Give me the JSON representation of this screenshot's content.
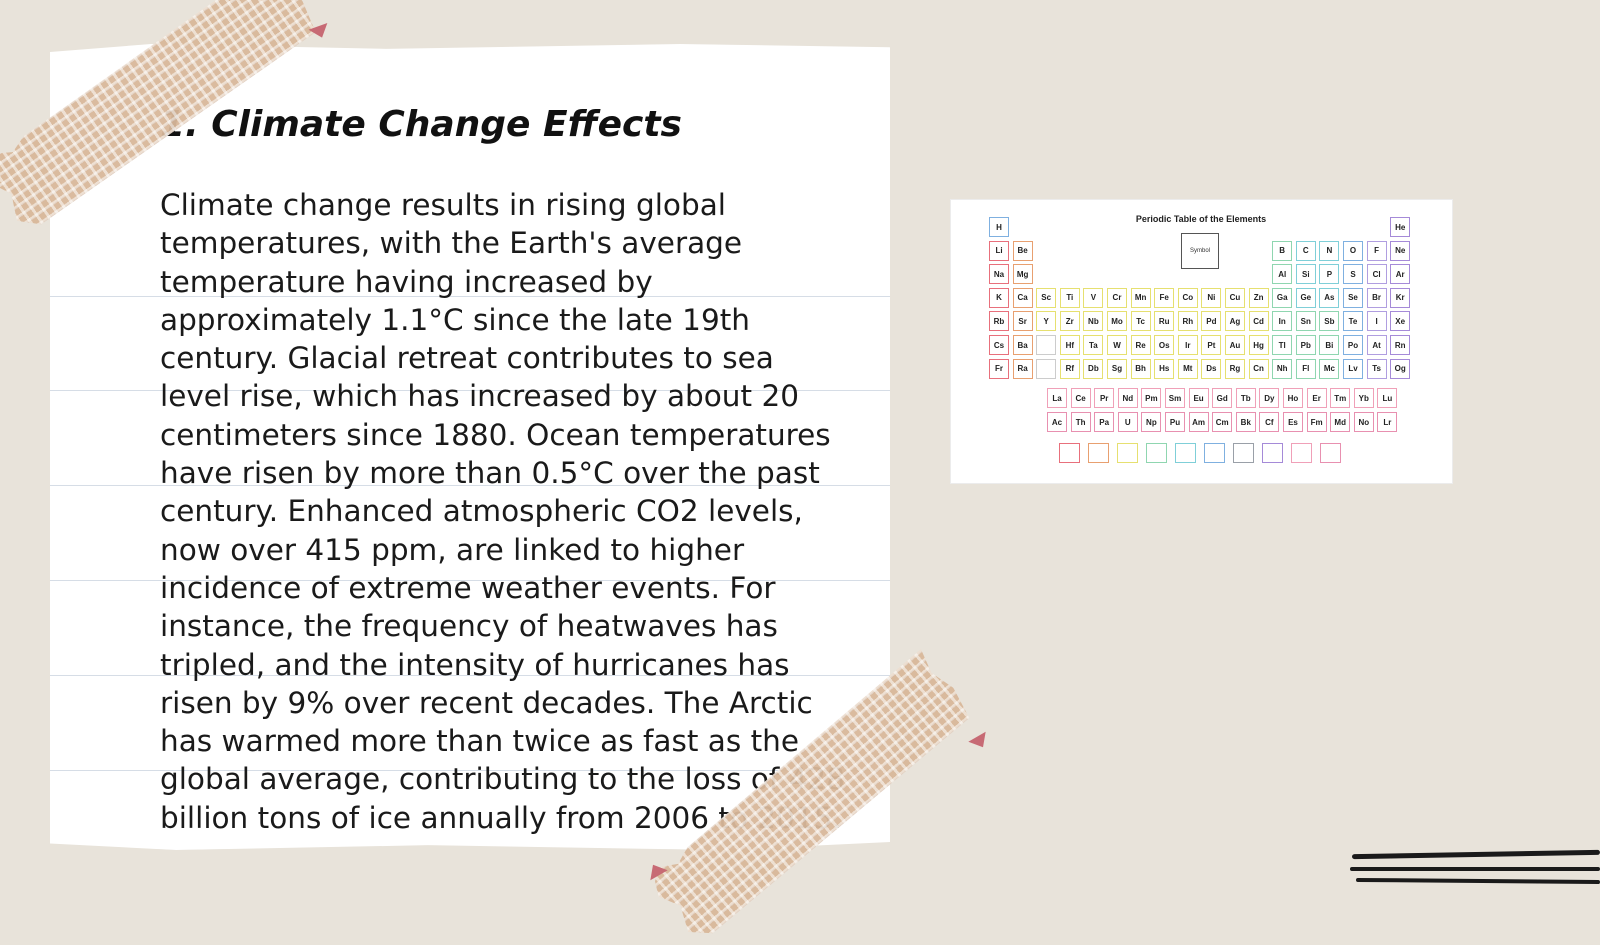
{
  "slide": {
    "title": "1. Climate Change Effects",
    "body": "Climate change results in rising global temperatures, with the Earth's average temperature having increased by approximately 1.1°C since the late 19th century. Glacial retreat contributes to sea level rise, which has increased by about 20 centimeters since 1880. Ocean temperatures have risen by more than 0.5°C over the past century. Enhanced atmospheric CO2 levels, now over 415 ppm, are linked to higher incidence of extreme weather events. For instance, the frequency of heatwaves has tripled, and the intensity of hurricanes has risen by 9% over recent decades. The Arctic has warmed more than twice as fast as the global average, contributing to the loss of 428 billion tons of ice annually from 2006 to 2015."
  },
  "periodic_table": {
    "title": "Periodic Table of the Elements",
    "key_label": "Symbol",
    "main_rows": [
      [
        "H",
        "",
        "",
        "",
        "",
        "",
        "",
        "",
        "",
        "",
        "",
        "",
        "",
        "",
        "",
        "",
        "",
        "He"
      ],
      [
        "Li",
        "Be",
        "",
        "",
        "",
        "",
        "",
        "",
        "",
        "",
        "",
        "",
        "B",
        "C",
        "N",
        "O",
        "F",
        "Ne"
      ],
      [
        "Na",
        "Mg",
        "",
        "",
        "",
        "",
        "",
        "",
        "",
        "",
        "",
        "",
        "Al",
        "Si",
        "P",
        "S",
        "Cl",
        "Ar"
      ],
      [
        "K",
        "Ca",
        "Sc",
        "Ti",
        "V",
        "Cr",
        "Mn",
        "Fe",
        "Co",
        "Ni",
        "Cu",
        "Zn",
        "Ga",
        "Ge",
        "As",
        "Se",
        "Br",
        "Kr"
      ],
      [
        "Rb",
        "Sr",
        "Y",
        "Zr",
        "Nb",
        "Mo",
        "Tc",
        "Ru",
        "Rh",
        "Pd",
        "Ag",
        "Cd",
        "In",
        "Sn",
        "Sb",
        "Te",
        "I",
        "Xe"
      ],
      [
        "Cs",
        "Ba",
        "",
        "Hf",
        "Ta",
        "W",
        "Re",
        "Os",
        "Ir",
        "Pt",
        "Au",
        "Hg",
        "Tl",
        "Pb",
        "Bi",
        "Po",
        "At",
        "Rn"
      ],
      [
        "Fr",
        "Ra",
        "",
        "Rf",
        "Db",
        "Sg",
        "Bh",
        "Hs",
        "Mt",
        "Ds",
        "Rg",
        "Cn",
        "Nh",
        "Fl",
        "Mc",
        "Lv",
        "Ts",
        "Og"
      ]
    ],
    "lanthanides": [
      "La",
      "Ce",
      "Pr",
      "Nd",
      "Pm",
      "Sm",
      "Eu",
      "Gd",
      "Tb",
      "Dy",
      "Ho",
      "Er",
      "Tm",
      "Yb",
      "Lu"
    ],
    "actinides": [
      "Ac",
      "Th",
      "Pa",
      "U",
      "Np",
      "Pu",
      "Am",
      "Cm",
      "Bk",
      "Cf",
      "Es",
      "Fm",
      "Md",
      "No",
      "Lr"
    ],
    "group_colors": {
      "alkali": "#e8707c",
      "alkaline": "#e8a070",
      "transition": "#e6e070",
      "post_transition": "#8fd6b0",
      "metalloid": "#7fcfd8",
      "nonmetal": "#7fb0e0",
      "halogen": "#b09ee0",
      "noble": "#a58ad8",
      "lanthanide": "#f0a0b8",
      "actinide": "#e890b0"
    },
    "legend_colors": [
      "#e8707c",
      "#e8a070",
      "#e6e070",
      "#8fd6b0",
      "#7fcfd8",
      "#7fb0e0",
      "#9aa0a8",
      "#a58ad8",
      "#f0a0b8",
      "#e890b0"
    ]
  },
  "colors": {
    "background": "#e8e3da",
    "paper": "#ffffff",
    "rule_line": "#d6dde6",
    "tape": "#d9b89a",
    "tape_pin": "#c76a74"
  }
}
